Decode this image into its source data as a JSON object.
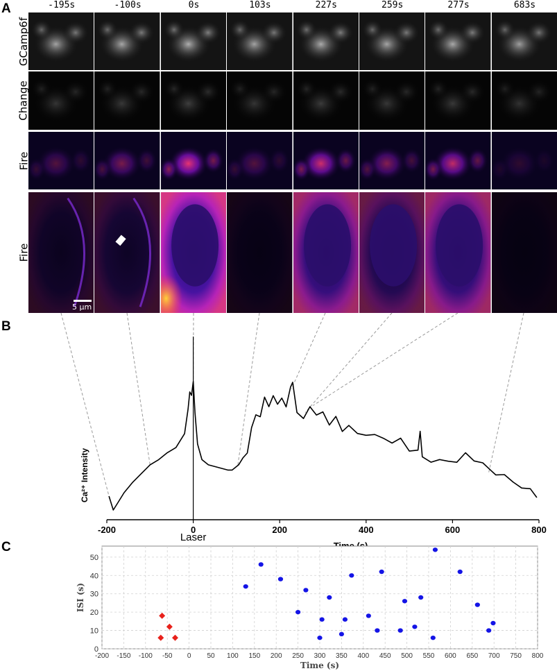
{
  "panels": {
    "a": "A",
    "b": "B",
    "c": "C"
  },
  "panel_a": {
    "timepoints": [
      "-195s",
      "-100s",
      "0s",
      "103s",
      "227s",
      "259s",
      "277s",
      "683s"
    ],
    "rows": [
      "GCamp6f",
      "Change",
      "Fire",
      "Fire"
    ],
    "zoom_brightness": [
      0.18,
      0.25,
      0.95,
      0.08,
      0.72,
      0.45,
      0.7,
      0.05
    ],
    "overview_brightness": [
      0.55,
      0.6,
      0.7,
      0.55,
      0.65,
      0.58,
      0.62,
      0.5
    ],
    "scale_bar": "5 µm"
  },
  "chart_data": [
    {
      "type": "line",
      "panel": "B",
      "xlabel": "Time (s)",
      "ylabel": "Ca²⁺ Intensity",
      "xlim": [
        -200,
        800
      ],
      "xticks": [
        -200,
        0,
        200,
        400,
        600,
        800
      ],
      "annotation": "Laser",
      "annotation_x": 0,
      "series": [
        {
          "x": [
            -195,
            -185,
            -175,
            -160,
            -140,
            -120,
            -100,
            -80,
            -60,
            -40,
            -20,
            -12,
            -8,
            -4,
            0,
            4,
            10,
            20,
            35,
            50,
            65,
            80,
            90,
            105,
            115,
            125,
            135,
            145,
            155,
            165,
            175,
            185,
            195,
            205,
            215,
            225,
            230,
            240,
            255,
            270,
            285,
            300,
            315,
            330,
            345,
            360,
            380,
            400,
            420,
            440,
            460,
            480,
            500,
            520,
            525,
            530,
            550,
            570,
            590,
            610,
            630,
            650,
            670,
            690,
            700,
            720,
            740,
            760,
            780,
            795
          ],
          "y": [
            0.12,
            0.04,
            0.08,
            0.14,
            0.2,
            0.25,
            0.3,
            0.33,
            0.37,
            0.4,
            0.48,
            0.62,
            0.72,
            0.7,
            0.78,
            0.6,
            0.42,
            0.33,
            0.3,
            0.29,
            0.28,
            0.27,
            0.27,
            0.3,
            0.34,
            0.4,
            0.55,
            0.62,
            0.6,
            0.7,
            0.63,
            0.68,
            0.62,
            0.65,
            0.6,
            0.72,
            0.76,
            0.6,
            0.58,
            0.66,
            0.62,
            0.64,
            0.56,
            0.6,
            0.5,
            0.52,
            0.46,
            0.44,
            0.44,
            0.42,
            0.4,
            0.44,
            0.38,
            0.4,
            0.52,
            0.38,
            0.35,
            0.36,
            0.34,
            0.32,
            0.36,
            0.3,
            0.28,
            0.23,
            0.21,
            0.22,
            0.19,
            0.17,
            0.18,
            0.14
          ]
        }
      ]
    },
    {
      "type": "scatter",
      "panel": "C",
      "xlabel": "Time (s)",
      "ylabel": "ISI (s)",
      "xlim": [
        -200,
        800
      ],
      "ylim": [
        0,
        56
      ],
      "xticks": [
        -200,
        -150,
        -100,
        -50,
        0,
        50,
        100,
        150,
        200,
        250,
        300,
        350,
        400,
        450,
        500,
        550,
        600,
        650,
        700,
        750,
        800
      ],
      "yticks": [
        0,
        10,
        20,
        30,
        40,
        50
      ],
      "grid": true,
      "series": [
        {
          "marker": "diamond",
          "color": "#e8211b",
          "points": [
            [
              -62,
              18
            ],
            [
              -45,
              12
            ],
            [
              -65,
              6
            ],
            [
              -32,
              6
            ]
          ]
        },
        {
          "marker": "circle",
          "color": "#1414e6",
          "points": [
            [
              130,
              34
            ],
            [
              165,
              46
            ],
            [
              210,
              38
            ],
            [
              250,
              20
            ],
            [
              268,
              32
            ],
            [
              300,
              6
            ],
            [
              305,
              16
            ],
            [
              322,
              28
            ],
            [
              350,
              8
            ],
            [
              358,
              16
            ],
            [
              373,
              40
            ],
            [
              412,
              18
            ],
            [
              432,
              10
            ],
            [
              442,
              42
            ],
            [
              485,
              10
            ],
            [
              495,
              26
            ],
            [
              518,
              12
            ],
            [
              532,
              28
            ],
            [
              560,
              6
            ],
            [
              565,
              54
            ],
            [
              622,
              42
            ],
            [
              662,
              24
            ],
            [
              688,
              10
            ],
            [
              698,
              14
            ]
          ]
        }
      ]
    }
  ]
}
